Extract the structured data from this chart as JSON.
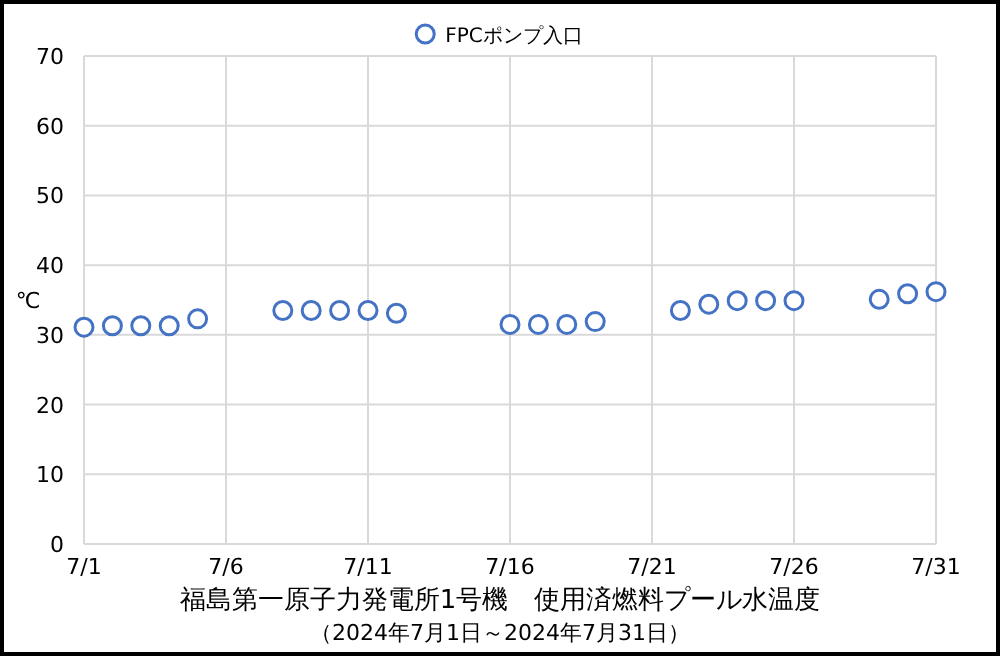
{
  "chart_data": {
    "type": "scatter",
    "title": "福島第一原子力発電所1号機　使用済燃料プール水温度",
    "subtitle": "（2024年7月1日～2024年7月31日）",
    "ylabel": "℃",
    "series": [
      {
        "name": "FPCポンプ入口",
        "color": "#4472c4",
        "x": [
          "--07-01",
          "--07-02",
          "--07-03",
          "--07-04",
          "--07-05",
          "--07-08",
          "--07-09",
          "--07-10",
          "--07-11",
          "--07-12",
          "--07-16",
          "--07-17",
          "--07-18",
          "--07-19",
          "--07-22",
          "--07-23",
          "--07-24",
          "--07-25",
          "--07-26",
          "--07-29",
          "--07-30",
          "--07-31"
        ],
        "values": [
          31.1,
          31.3,
          31.3,
          31.3,
          32.3,
          33.5,
          33.5,
          33.5,
          33.5,
          33.1,
          31.5,
          31.5,
          31.5,
          31.9,
          33.5,
          34.4,
          34.9,
          34.9,
          34.9,
          35.1,
          35.9,
          36.2
        ]
      }
    ],
    "xlim": [
      "--07-01",
      "--07-31"
    ],
    "xticks": [
      {
        "value": "--07-01",
        "label": "7/1"
      },
      {
        "value": "--07-06",
        "label": "7/6"
      },
      {
        "value": "--07-11",
        "label": "7/11"
      },
      {
        "value": "--07-16",
        "label": "7/16"
      },
      {
        "value": "--07-21",
        "label": "7/21"
      },
      {
        "value": "--07-26",
        "label": "7/26"
      },
      {
        "value": "--07-31",
        "label": "7/31"
      }
    ],
    "ylim": [
      0,
      70
    ],
    "yticks": [
      0,
      10,
      20,
      30,
      40,
      50,
      60,
      70
    ],
    "grid": true,
    "legend": "top",
    "marker": "circle"
  }
}
